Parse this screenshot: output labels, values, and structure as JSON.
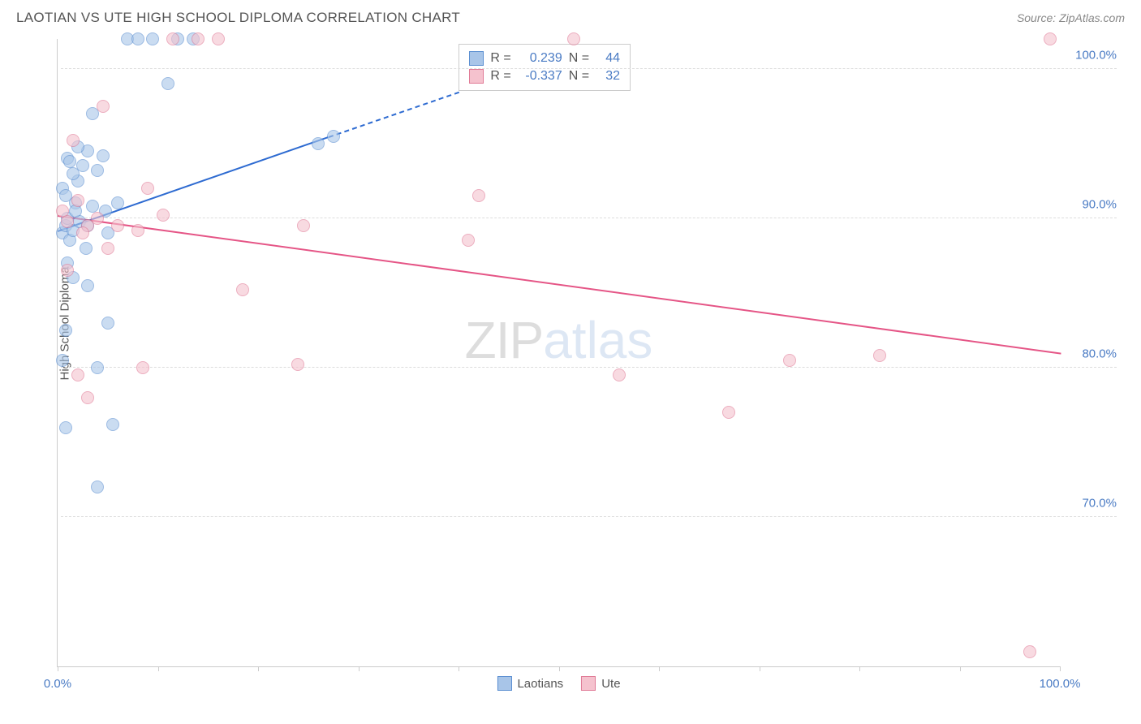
{
  "title": "LAOTIAN VS UTE HIGH SCHOOL DIPLOMA CORRELATION CHART",
  "source": "Source: ZipAtlas.com",
  "ylabel": "High School Diploma",
  "watermark": {
    "part1": "ZIP",
    "part2": "atlas"
  },
  "chart": {
    "type": "scatter",
    "background_color": "#ffffff",
    "grid_color": "#dddddd",
    "axis_color": "#cccccc",
    "tick_label_color": "#4a7bc4",
    "label_fontsize": 15,
    "xlim": [
      0,
      100
    ],
    "ylim": [
      60,
      102
    ],
    "xticks": [
      0,
      10,
      20,
      30,
      40,
      50,
      60,
      70,
      80,
      90,
      100
    ],
    "xtick_labels": {
      "0": "0.0%",
      "100": "100.0%"
    },
    "yticks": [
      70,
      80,
      90,
      100
    ],
    "ytick_labels": {
      "70": "70.0%",
      "80": "80.0%",
      "90": "90.0%",
      "100": "100.0%"
    },
    "series": [
      {
        "name": "Laotians",
        "fill_color": "#a8c5e8",
        "stroke_color": "#5b8fd1",
        "marker_size": 16,
        "trend": {
          "x1": 0,
          "y1": 89.2,
          "x2": 27,
          "y2": 95.5,
          "x2_dash": 40,
          "y2_dash": 98.5,
          "color": "#2e6bd1",
          "width": 2
        },
        "points": [
          [
            0.5,
            89.0
          ],
          [
            0.8,
            89.5
          ],
          [
            1.0,
            90.0
          ],
          [
            1.2,
            88.5
          ],
          [
            1.5,
            89.2
          ],
          [
            1.8,
            91.0
          ],
          [
            0.5,
            92.0
          ],
          [
            2.0,
            92.5
          ],
          [
            2.5,
            93.5
          ],
          [
            1.0,
            94.0
          ],
          [
            3.0,
            94.5
          ],
          [
            2.0,
            94.8
          ],
          [
            1.5,
            93.0
          ],
          [
            4.0,
            93.2
          ],
          [
            0.8,
            91.5
          ],
          [
            3.5,
            97.0
          ],
          [
            4.5,
            94.2
          ],
          [
            2.2,
            89.8
          ],
          [
            1.0,
            87.0
          ],
          [
            1.5,
            86.0
          ],
          [
            0.5,
            80.5
          ],
          [
            0.8,
            82.5
          ],
          [
            5.0,
            83.0
          ],
          [
            3.0,
            85.5
          ],
          [
            4.0,
            80.0
          ],
          [
            0.8,
            76.0
          ],
          [
            5.5,
            76.2
          ],
          [
            4.0,
            72.0
          ],
          [
            3.0,
            89.5
          ],
          [
            4.8,
            90.5
          ],
          [
            7.0,
            102
          ],
          [
            8.0,
            102
          ],
          [
            9.5,
            102
          ],
          [
            12.0,
            102
          ],
          [
            13.5,
            102
          ],
          [
            11.0,
            99.0
          ],
          [
            6.0,
            91.0
          ],
          [
            5.0,
            89.0
          ],
          [
            3.5,
            90.8
          ],
          [
            2.8,
            88.0
          ],
          [
            1.8,
            90.5
          ],
          [
            26.0,
            95.0
          ],
          [
            27.5,
            95.5
          ],
          [
            1.2,
            93.8
          ]
        ]
      },
      {
        "name": "Ute",
        "fill_color": "#f5c2ce",
        "stroke_color": "#e07a96",
        "marker_size": 16,
        "trend": {
          "x1": 0,
          "y1": 90.2,
          "x2": 100,
          "y2": 81.0,
          "color": "#e55586",
          "width": 2
        },
        "points": [
          [
            0.5,
            90.5
          ],
          [
            1.0,
            89.8
          ],
          [
            2.0,
            91.2
          ],
          [
            3.0,
            89.5
          ],
          [
            4.5,
            97.5
          ],
          [
            1.5,
            95.2
          ],
          [
            2.5,
            89.0
          ],
          [
            4.0,
            90.0
          ],
          [
            6.0,
            89.5
          ],
          [
            9.0,
            92.0
          ],
          [
            10.5,
            90.2
          ],
          [
            11.5,
            102
          ],
          [
            14.0,
            102
          ],
          [
            16.0,
            102
          ],
          [
            51.5,
            102
          ],
          [
            99.0,
            102
          ],
          [
            42.0,
            91.5
          ],
          [
            41.0,
            88.5
          ],
          [
            56.0,
            79.5
          ],
          [
            73.0,
            80.5
          ],
          [
            67.0,
            77.0
          ],
          [
            82.0,
            80.8
          ],
          [
            18.5,
            85.2
          ],
          [
            24.0,
            80.2
          ],
          [
            8.5,
            80.0
          ],
          [
            2.0,
            79.5
          ],
          [
            1.0,
            86.5
          ],
          [
            3.0,
            78.0
          ],
          [
            8.0,
            89.2
          ],
          [
            24.5,
            89.5
          ],
          [
            97.0,
            61.0
          ],
          [
            5.0,
            88.0
          ]
        ]
      }
    ],
    "stats": {
      "rows": [
        {
          "swatch_fill": "#a8c5e8",
          "swatch_stroke": "#5b8fd1",
          "r_label": "R =",
          "r": "0.239",
          "n_label": "N =",
          "n": "44"
        },
        {
          "swatch_fill": "#f5c2ce",
          "swatch_stroke": "#e07a96",
          "r_label": "R =",
          "r": "-0.337",
          "n_label": "N =",
          "n": "32"
        }
      ]
    },
    "legend": [
      {
        "label": "Laotians",
        "fill": "#a8c5e8",
        "stroke": "#5b8fd1"
      },
      {
        "label": "Ute",
        "fill": "#f5c2ce",
        "stroke": "#e07a96"
      }
    ]
  }
}
